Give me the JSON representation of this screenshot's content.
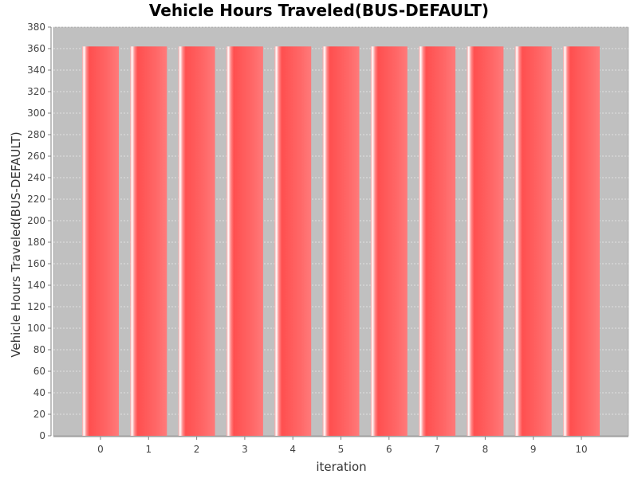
{
  "chart_data": {
    "type": "bar",
    "title": "Vehicle Hours Traveled(BUS-DEFAULT)",
    "xlabel": "iteration",
    "ylabel": "Vehicle Hours Traveled(BUS-DEFAULT)",
    "categories": [
      "0",
      "1",
      "2",
      "3",
      "4",
      "5",
      "6",
      "7",
      "8",
      "9",
      "10"
    ],
    "values": [
      362,
      362,
      362,
      362,
      362,
      362,
      362,
      362,
      362,
      362,
      362
    ],
    "ylim": [
      0,
      380
    ],
    "ytick_step": 20,
    "grid": true,
    "legend": "none",
    "colors": {
      "plot_background": "#c0c0c0",
      "bar": "#ff5555",
      "grid": "#ffffff"
    }
  }
}
